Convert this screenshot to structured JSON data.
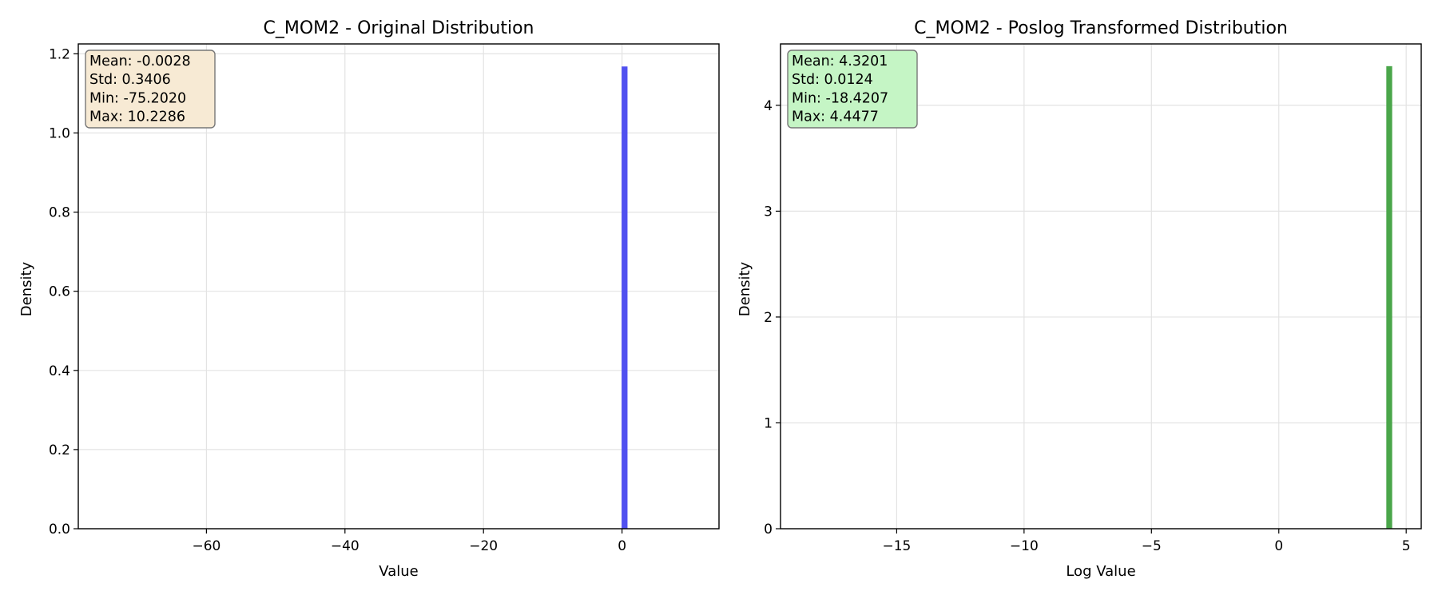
{
  "chart_data": [
    {
      "type": "bar",
      "title": "C_MOM2 - Original Distribution",
      "xlabel": "Value",
      "ylabel": "Density",
      "xlim": [
        -78.5,
        14.0
      ],
      "ylim": [
        0,
        1.225
      ],
      "xticks": [
        -60,
        -40,
        -20,
        0
      ],
      "xtick_labels": [
        "−60",
        "−40",
        "−20",
        "0"
      ],
      "yticks": [
        0.0,
        0.2,
        0.4,
        0.6,
        0.8,
        1.0,
        1.2
      ],
      "ytick_labels": [
        "0.0",
        "0.2",
        "0.4",
        "0.6",
        "0.8",
        "1.0",
        "1.2"
      ],
      "grid": true,
      "bar_color": "#5050f0",
      "bars": [
        {
          "x_start": -0.06,
          "x_end": 0.79,
          "density": 1.168
        }
      ],
      "stats": {
        "lines": [
          "Mean: -0.0028",
          "Std: 0.3406",
          "Min: -75.2020",
          "Max: 10.2286"
        ],
        "box_color": "#f7ead4"
      }
    },
    {
      "type": "bar",
      "title": "C_MOM2 - Poslog Transformed Distribution",
      "xlabel": "Log Value",
      "ylabel": "Density",
      "xlim": [
        -19.56,
        5.59
      ],
      "ylim": [
        0,
        4.58
      ],
      "xticks": [
        -15,
        -10,
        -5,
        0,
        5
      ],
      "xtick_labels": [
        "−15",
        "−10",
        "−5",
        "0",
        "5"
      ],
      "yticks": [
        0,
        1,
        2,
        3,
        4
      ],
      "ytick_labels": [
        "0",
        "1",
        "2",
        "3",
        "4"
      ],
      "grid": true,
      "bar_color": "#4aa64a",
      "bars": [
        {
          "x_start": 4.22,
          "x_end": 4.45,
          "density": 4.37
        }
      ],
      "stats": {
        "lines": [
          "Mean: 4.3201",
          "Std: 0.0124",
          "Min: -18.4207",
          "Max: 4.4477"
        ],
        "box_color": "#c5f5c5"
      }
    }
  ]
}
